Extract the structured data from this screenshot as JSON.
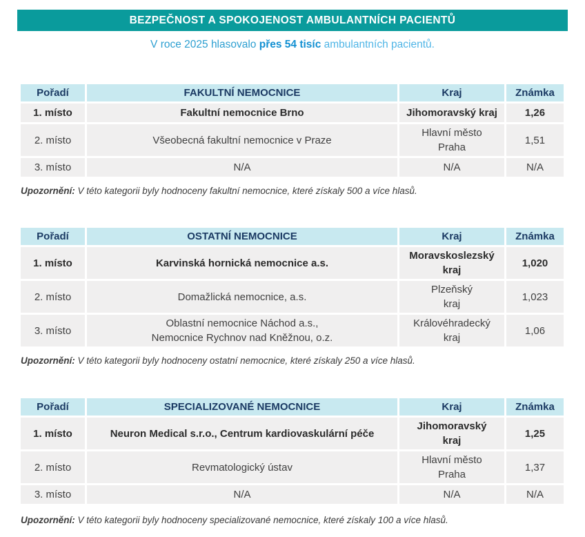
{
  "banner": {
    "title": "BEZPEČNOST A SPOKOJENOST AMBULANTNÍCH PACIENTŮ"
  },
  "subtitle": {
    "prefix": "V roce 2025 hlasovalo ",
    "highlight": "přes 54 tisíc",
    "suffix": " ambulantních pacientů."
  },
  "columns": {
    "rank": "Pořadí",
    "region": "Kraj",
    "grade": "Známka"
  },
  "tables": [
    {
      "category": "FAKULTNÍ NEMOCNICE",
      "rows": [
        {
          "rank": "1. místo",
          "name": "Fakultní nemocnice Brno",
          "region": "Jihomoravský kraj",
          "grade": "1,26"
        },
        {
          "rank": "2. místo",
          "name": "Všeobecná fakultní nemocnice v Praze",
          "region": "Hlavní město\nPraha",
          "grade": "1,51"
        },
        {
          "rank": "3. místo",
          "name": "N/A",
          "region": "N/A",
          "grade": "N/A"
        }
      ],
      "note_label": "Upozornění:",
      "note_text": " V této kategorii byly hodnoceny fakultní nemocnice, které získaly 500 a více hlasů."
    },
    {
      "category": "OSTATNÍ NEMOCNICE",
      "rows": [
        {
          "rank": "1. místo",
          "name": "Karvinská hornická nemocnice a.s.",
          "region": "Moravskoslezský\nkraj",
          "grade": "1,020"
        },
        {
          "rank": "2. místo",
          "name": "Domažlická nemocnice, a.s.",
          "region": "Plzeňský\nkraj",
          "grade": "1,023"
        },
        {
          "rank": "3. místo",
          "name": "Oblastní nemocnice Náchod a.s.,\nNemocnice Rychnov nad Kněžnou, o.z.",
          "region": "Královéhradecký\nkraj",
          "grade": "1,06"
        }
      ],
      "note_label": "Upozornění:",
      "note_text": " V této kategorii byly hodnoceny ostatní nemocnice, které získaly 250 a více hlasů."
    },
    {
      "category": "SPECIALIZOVANÉ NEMOCNICE",
      "rows": [
        {
          "rank": "1. místo",
          "name": "Neuron Medical s.r.o., Centrum kardiovaskulární péče",
          "region": "Jihomoravský\nkraj",
          "grade": "1,25"
        },
        {
          "rank": "2. místo",
          "name": "Revmatologický ústav",
          "region": "Hlavní město\nPraha",
          "grade": "1,37"
        },
        {
          "rank": "3. místo",
          "name": "N/A",
          "region": "N/A",
          "grade": "N/A"
        }
      ],
      "note_label": "Upozornění:",
      "note_text": " V této kategorii byly hodnoceny specializované nemocnice, které získaly 100 a více hlasů."
    }
  ],
  "colors": {
    "banner_bg": "#0a9b9c",
    "banner_text": "#ffffff",
    "subtitle_text": "#2d9fd1",
    "subtitle_highlight": "#118fd2",
    "subtitle_tail": "#4fb5e6",
    "header_cell_bg": "#c8e9f0",
    "header_cell_text": "#1b3a63",
    "row_bg": "#f0efef",
    "row_text": "#3f3f3f"
  }
}
